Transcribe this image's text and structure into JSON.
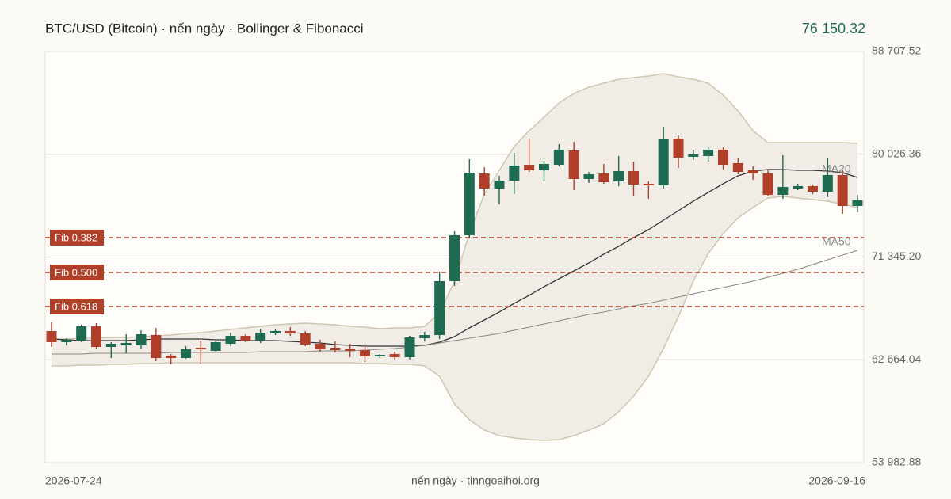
{
  "chart_data": {
    "type": "candlestick",
    "title": "BTC/USD (Bitcoin) · nến ngày · Bollinger & Fibonacci",
    "last_price": {
      "value": 76150.32,
      "label": "76 150.32"
    },
    "footer": "nến ngày · tinngoaihoi.org",
    "categories": [
      "2026-07-24",
      null,
      null,
      null,
      null,
      null,
      null,
      null,
      null,
      null,
      null,
      null,
      null,
      null,
      null,
      null,
      null,
      null,
      null,
      null,
      null,
      null,
      null,
      null,
      null,
      null,
      null,
      null,
      null,
      null,
      null,
      null,
      null,
      null,
      null,
      null,
      null,
      null,
      null,
      null,
      null,
      null,
      null,
      null,
      null,
      null,
      null,
      null,
      null,
      null,
      null,
      null,
      null,
      null,
      "2026-09-16"
    ],
    "open": [
      65090,
      64153,
      64287,
      65491,
      63752,
      63885,
      63885,
      64755,
      63016,
      62815,
      63685,
      63417,
      64019,
      64688,
      64287,
      64889,
      65090,
      64889,
      64019,
      63685,
      63618,
      63484,
      62949,
      63149,
      62882,
      64488,
      64755,
      69305,
      73186,
      78404,
      77133,
      77802,
      79140,
      78672,
      79140,
      80345,
      77936,
      78404,
      77735,
      78605,
      77535,
      77401,
      81348,
      79809,
      79876,
      80412,
      79274,
      78672,
      78404,
      76598,
      77133,
      77334,
      76866,
      78271,
      75661
    ],
    "high": [
      65826,
      64488,
      65625,
      65759,
      64153,
      64822,
      65157,
      65357,
      63149,
      63818,
      64287,
      64287,
      64956,
      64822,
      65290,
      65224,
      65424,
      65090,
      64354,
      64220,
      64019,
      63752,
      63149,
      63350,
      64688,
      65023,
      70108,
      73520,
      79609,
      78940,
      78204,
      80144,
      81348,
      79475,
      80880,
      81081,
      78538,
      79207,
      79876,
      79408,
      77735,
      82352,
      81616,
      80412,
      80612,
      80612,
      79676,
      79007,
      78739,
      79943,
      77535,
      77468,
      79676,
      78672,
      76598
    ],
    "low": [
      63752,
      63885,
      64153,
      63618,
      62815,
      63216,
      63618,
      62547,
      62280,
      62748,
      62280,
      63350,
      63818,
      64153,
      64086,
      64755,
      64688,
      63818,
      63350,
      63283,
      62882,
      62480,
      62815,
      62681,
      62681,
      64220,
      64421,
      68903,
      72985,
      76531,
      75795,
      76665,
      78538,
      77735,
      79007,
      76999,
      77602,
      77535,
      77334,
      76464,
      76263,
      77133,
      78873,
      79542,
      79408,
      78739,
      78338,
      77869,
      76464,
      76263,
      76999,
      76665,
      76397,
      74992,
      75126
    ],
    "close": [
      64153,
      64354,
      65491,
      63752,
      64019,
      64086,
      64822,
      62815,
      62815,
      63551,
      63551,
      64153,
      64688,
      64287,
      64956,
      65090,
      64889,
      63952,
      63551,
      63484,
      63417,
      62949,
      63082,
      62882,
      64554,
      64755,
      69305,
      73186,
      78471,
      77133,
      77802,
      79073,
      78672,
      79207,
      80412,
      77936,
      78338,
      77668,
      78605,
      77468,
      77401,
      81281,
      79743,
      80010,
      80412,
      79140,
      78538,
      78404,
      76598,
      77267,
      77334,
      76866,
      78271,
      75661,
      76150.32
    ],
    "up_color": "#1e6b52",
    "down_color": "#b0402a",
    "bands": {
      "color": "#cfc6b2",
      "fill": "#f1ede6",
      "upper": [
        64421,
        64421,
        64488,
        64488,
        64554,
        64554,
        64621,
        64688,
        64755,
        64889,
        64956,
        65090,
        65224,
        65357,
        65491,
        65625,
        65692,
        65759,
        65692,
        65625,
        65491,
        65424,
        65290,
        65357,
        65357,
        65491,
        66629,
        69305,
        73319,
        76665,
        78672,
        80679,
        82017,
        83155,
        84359,
        85162,
        85697,
        86032,
        86366,
        86500,
        86634,
        86835,
        86567,
        86366,
        86032,
        85028,
        83690,
        82017,
        81014,
        81014,
        81014,
        81014,
        81014,
        81014,
        80947
      ],
      "lower": [
        62146,
        62146,
        62213,
        62213,
        62280,
        62280,
        62347,
        62347,
        62413,
        62413,
        62413,
        62413,
        62413,
        62413,
        62413,
        62413,
        62413,
        62413,
        62413,
        62413,
        62413,
        62347,
        62347,
        62280,
        62280,
        62146,
        61276,
        58934,
        57596,
        56726,
        56258,
        56057,
        55923,
        55856,
        55923,
        56258,
        56726,
        57261,
        58265,
        59603,
        61276,
        63618,
        66294,
        69305,
        71647,
        73319,
        74658,
        75527,
        76330,
        76464,
        76330,
        76196,
        76063,
        75795,
        75527
      ]
    },
    "series": [
      {
        "name": "MA20",
        "color": "#333333",
        "values": [
          64421,
          64354,
          64287,
          64287,
          64287,
          64287,
          64354,
          64421,
          64421,
          64421,
          64421,
          64354,
          64354,
          64287,
          64287,
          64287,
          64220,
          64153,
          64086,
          63952,
          63885,
          63818,
          63818,
          63818,
          63818,
          63885,
          64153,
          64621,
          65357,
          66026,
          66696,
          67431,
          68101,
          68837,
          69506,
          70175,
          70844,
          71580,
          72249,
          72985,
          73654,
          74457,
          75260,
          76063,
          76799,
          77535,
          78204,
          78605,
          78739,
          78739,
          78672,
          78672,
          78605,
          78471,
          78070
        ]
      },
      {
        "name": "MA50",
        "color": "#8a877f",
        "values": [
          63149,
          63149,
          63149,
          63216,
          63216,
          63216,
          63216,
          63216,
          63283,
          63283,
          63283,
          63283,
          63283,
          63283,
          63350,
          63350,
          63350,
          63350,
          63417,
          63417,
          63417,
          63484,
          63551,
          63618,
          63752,
          63885,
          64086,
          64287,
          64488,
          64688,
          64889,
          65157,
          65424,
          65692,
          65960,
          66227,
          66495,
          66696,
          66963,
          67231,
          67431,
          67699,
          67967,
          68234,
          68502,
          68770,
          69037,
          69305,
          69639,
          69974,
          70309,
          70710,
          71111,
          71513,
          71914
        ]
      }
    ],
    "fib": [
      {
        "label": "Fib 0.382",
        "value": 72985
      },
      {
        "label": "Fib 0.500",
        "value": 70041
      },
      {
        "label": "Fib 0.618",
        "value": 67164
      }
    ],
    "fib_color": "#b0402a",
    "ylim": [
      53982.88,
      88707.52
    ],
    "yticks": [
      {
        "value": 53982.88,
        "label": "53 982.88"
      },
      {
        "value": 62664.04,
        "label": "62 664.04"
      },
      {
        "value": 71345.2,
        "label": "71 345.20"
      },
      {
        "value": 80026.36,
        "label": "80 026.36"
      },
      {
        "value": 88707.52,
        "label": "88 707.52"
      }
    ],
    "grid": true
  }
}
